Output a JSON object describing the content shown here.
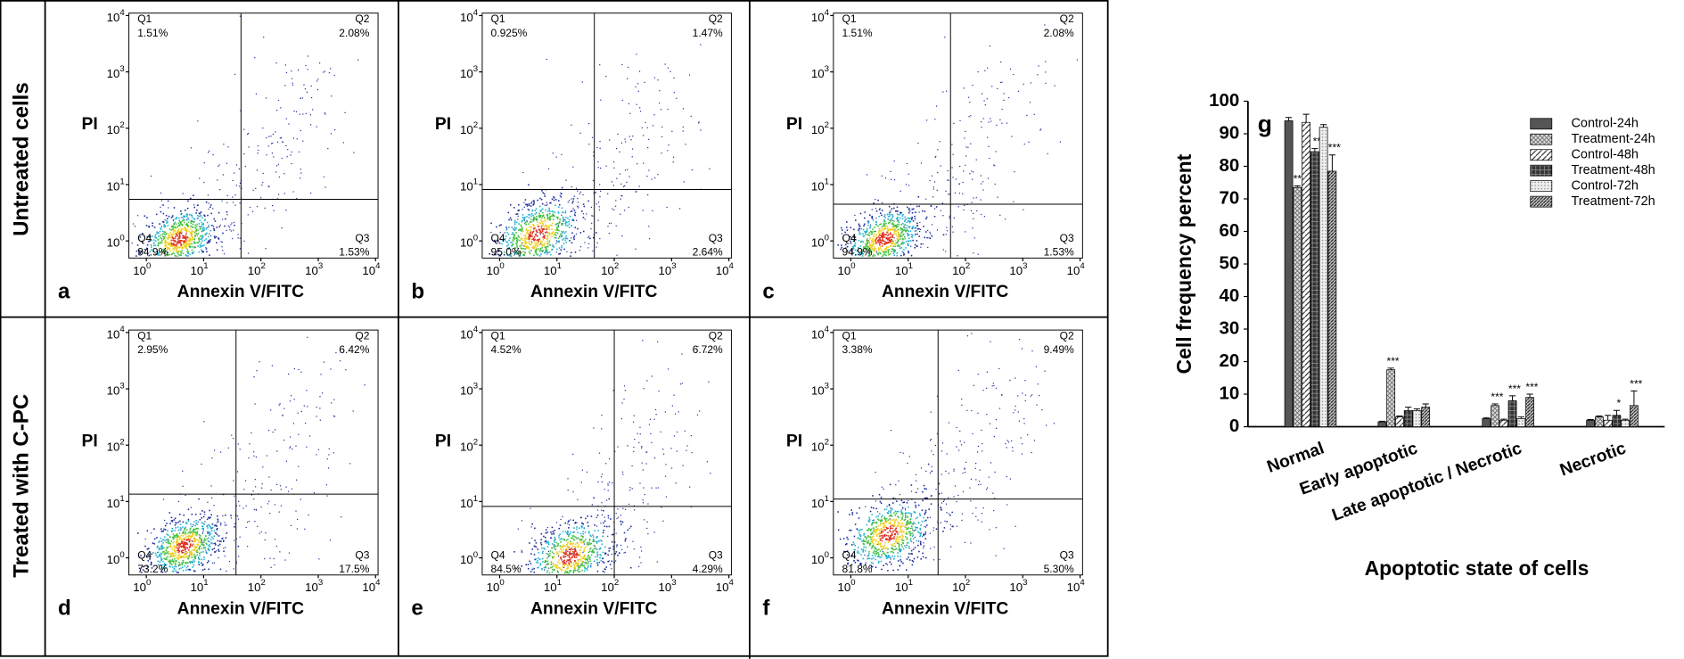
{
  "row_labels": [
    "Untreated cells",
    "Treated with C-PC"
  ],
  "panels": [
    {
      "letter": "a",
      "xlabel": "Annexin V/FITC",
      "ylabel": "PI",
      "tick_base": "10",
      "ticks": [
        0,
        1,
        2,
        3,
        4
      ],
      "quadrants": [
        {
          "name": "Q1",
          "percent": "1.51%"
        },
        {
          "name": "Q2",
          "percent": "2.08%"
        },
        {
          "name": "Q3",
          "percent": "1.53%"
        },
        {
          "name": "Q4",
          "percent": "94.9%"
        }
      ]
    },
    {
      "letter": "b",
      "xlabel": "Annexin V/FITC",
      "ylabel": "PI",
      "tick_base": "10",
      "ticks": [
        0,
        1,
        2,
        3,
        4
      ],
      "quadrants": [
        {
          "name": "Q1",
          "percent": "0.925%"
        },
        {
          "name": "Q2",
          "percent": "1.47%"
        },
        {
          "name": "Q3",
          "percent": "2.64%"
        },
        {
          "name": "Q4",
          "percent": "95.0%"
        }
      ]
    },
    {
      "letter": "c",
      "xlabel": "Annexin V/FITC",
      "ylabel": "PI",
      "tick_base": "10",
      "ticks": [
        0,
        1,
        2,
        3,
        4
      ],
      "quadrants": [
        {
          "name": "Q1",
          "percent": "1.51%"
        },
        {
          "name": "Q2",
          "percent": "2.08%"
        },
        {
          "name": "Q3",
          "percent": "1.53%"
        },
        {
          "name": "Q4",
          "percent": "94.9%"
        }
      ]
    },
    {
      "letter": "d",
      "xlabel": "Annexin V/FITC",
      "ylabel": "PI",
      "tick_base": "10",
      "ticks": [
        0,
        1,
        2,
        3,
        4
      ],
      "quadrants": [
        {
          "name": "Q1",
          "percent": "2.95%"
        },
        {
          "name": "Q2",
          "percent": "6.42%"
        },
        {
          "name": "Q3",
          "percent": "17.5%"
        },
        {
          "name": "Q4",
          "percent": "73.2%"
        }
      ]
    },
    {
      "letter": "e",
      "xlabel": "Annexin V/FITC",
      "ylabel": "PI",
      "tick_base": "10",
      "ticks": [
        0,
        1,
        2,
        3,
        4
      ],
      "quadrants": [
        {
          "name": "Q1",
          "percent": "4.52%"
        },
        {
          "name": "Q2",
          "percent": "6.72%"
        },
        {
          "name": "Q3",
          "percent": "4.29%"
        },
        {
          "name": "Q4",
          "percent": "84.5%"
        }
      ]
    },
    {
      "letter": "f",
      "xlabel": "Annexin V/FITC",
      "ylabel": "PI",
      "tick_base": "10",
      "ticks": [
        0,
        1,
        2,
        3,
        4
      ],
      "quadrants": [
        {
          "name": "Q1",
          "percent": "3.38%"
        },
        {
          "name": "Q2",
          "percent": "9.49%"
        },
        {
          "name": "Q3",
          "percent": "5.30%"
        },
        {
          "name": "Q4",
          "percent": "81.8%"
        }
      ]
    }
  ],
  "chart_data": {
    "type": "bar",
    "panel_letter": "g",
    "ylabel": "Cell frequency percent",
    "xlabel": "Apoptotic state of cells",
    "categories": [
      "Normal",
      "Early apoptotic",
      "Late apoptotic / Necrotic",
      "Necrotic"
    ],
    "ylim": [
      0,
      100
    ],
    "yticks": [
      0,
      10,
      20,
      30,
      40,
      50,
      60,
      70,
      80,
      90,
      100
    ],
    "legend": "upper right",
    "series": [
      {
        "name": "Control-24h",
        "color": "#555555",
        "pattern": "solid",
        "values": [
          94,
          1.5,
          2.5,
          2
        ],
        "errors": [
          1,
          0.2,
          0.3,
          0.2
        ],
        "annotations": [
          null,
          null,
          null,
          null
        ]
      },
      {
        "name": "Treatment-24h",
        "color": "#bbbbbb",
        "pattern": "crosshatch",
        "values": [
          73.5,
          17.5,
          6.5,
          3
        ],
        "errors": [
          0.5,
          0.5,
          0.5,
          0.3
        ],
        "annotations": [
          "***",
          "***",
          "***",
          null
        ]
      },
      {
        "name": "Control-48h",
        "color": "#ffffff",
        "pattern": "diagonal",
        "values": [
          93.5,
          3,
          2,
          2
        ],
        "errors": [
          2.5,
          0.3,
          0.3,
          1.5
        ],
        "annotations": [
          null,
          null,
          null,
          null
        ]
      },
      {
        "name": "Treatment-48h",
        "color": "#333333",
        "pattern": "grid",
        "values": [
          84.5,
          5,
          8,
          3.5
        ],
        "errors": [
          1,
          1,
          1.5,
          1.5
        ],
        "annotations": [
          "**",
          null,
          "***",
          "*"
        ]
      },
      {
        "name": "Control-72h",
        "color": "#dddddd",
        "pattern": "dots",
        "values": [
          92,
          5,
          2.5,
          2
        ],
        "errors": [
          0.8,
          0.5,
          0.5,
          0.3
        ],
        "annotations": [
          null,
          null,
          null,
          null
        ]
      },
      {
        "name": "Treatment-72h",
        "color": "#666666",
        "pattern": "diagonal-dense",
        "values": [
          78.5,
          6,
          9,
          6.5
        ],
        "errors": [
          5,
          1,
          1,
          4.5
        ],
        "annotations": [
          "***",
          null,
          "***",
          "***"
        ]
      }
    ]
  }
}
